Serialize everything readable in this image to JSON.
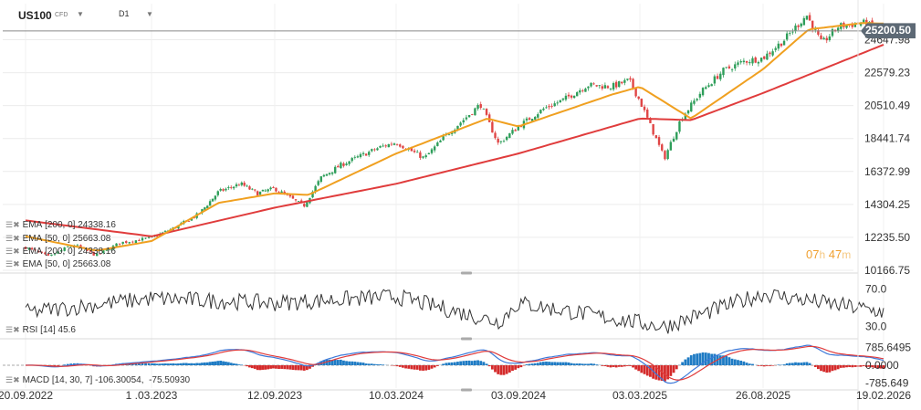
{
  "header": {
    "symbol": "US100",
    "instrument_type": "CFD",
    "timeframe": "D1"
  },
  "legend_overlays": [
    {
      "label": "EMA",
      "params": "[200, 0]",
      "value": "24338.16"
    },
    {
      "label": "EMA",
      "params": "[50, 0]",
      "value": "25663.08"
    },
    {
      "label": "EMA",
      "params": "[200, 0]",
      "value": "24338.16"
    },
    {
      "label": "EMA",
      "params": "[50, 0]",
      "value": "25663.08"
    }
  ],
  "rsi_legend": {
    "label": "RSI",
    "params": "[14]",
    "value": "45.6"
  },
  "macd_legend": {
    "label": "MACD",
    "params": "[14, 30, 7]",
    "value1": "-106.30054",
    "value2": "-75.50930"
  },
  "timer": {
    "hours": "07",
    "h_unit": "h",
    "minutes": "47",
    "m_unit": "m"
  },
  "last_price": "25200.50",
  "colors": {
    "ema200": "#e03c3c",
    "ema50": "#f0a020",
    "bull_candle": "#2e9e5a",
    "bear_candle": "#e04545",
    "rsi_line": "#333333",
    "macd_line": "#3c78d8",
    "signal_line": "#e03c3c",
    "hist_pos": "#1e7bc4",
    "hist_neg": "#d42a2a"
  },
  "chart_data": [
    {
      "type": "candlestick",
      "x_tick_labels": [
        "20.09.2022",
        "1 .03.2023",
        "12.09.2023",
        "10.03.2024",
        "03.09.2024",
        "03.03.2025",
        "26.08.2025",
        "19.02.2026"
      ],
      "y_tick_labels": [
        "24647.98",
        "22579.23",
        "20510.49",
        "18441.74",
        "16372.99",
        "14304.25",
        "12235.50",
        "10166.75"
      ],
      "y_range": [
        10166.75,
        26800
      ],
      "last_price": 25200.5,
      "close_path": [
        [
          "20.09.2022",
          11600
        ],
        [
          "2022-10-20",
          11000
        ],
        [
          "2022-11-20",
          11800
        ],
        [
          "2022-12-20",
          11100
        ],
        [
          "2023-01-20",
          11900
        ],
        [
          "1 .03.2023",
          12200
        ],
        [
          "2023-04-10",
          12900
        ],
        [
          "2023-05-15",
          13700
        ],
        [
          "2023-06-15",
          15100
        ],
        [
          "2023-07-20",
          15600
        ],
        [
          "2023-08-15",
          15000
        ],
        [
          "12.09.2023",
          15300
        ],
        [
          "2023-10-25",
          14200
        ],
        [
          "2023-11-20",
          16000
        ],
        [
          "2023-12-20",
          16800
        ],
        [
          "2024-01-20",
          17400
        ],
        [
          "2024-02-15",
          17900
        ],
        [
          "10.03.2024",
          18200
        ],
        [
          "2024-04-20",
          17200
        ],
        [
          "2024-05-20",
          18600
        ],
        [
          "2024-06-20",
          19800
        ],
        [
          "2024-07-10",
          20600
        ],
        [
          "2024-08-05",
          18100
        ],
        [
          "03.09.2024",
          19200
        ],
        [
          "2024-10-10",
          20300
        ],
        [
          "2024-11-10",
          20900
        ],
        [
          "2024-12-15",
          21800
        ],
        [
          "2025-01-20",
          21700
        ],
        [
          "2025-02-15",
          22100
        ],
        [
          "03.03.2025",
          20800
        ],
        [
          "2025-04-07",
          17200
        ],
        [
          "2025-05-01",
          19700
        ],
        [
          "2025-05-30",
          21400
        ],
        [
          "2025-06-30",
          22700
        ],
        [
          "2025-07-30",
          23300
        ],
        [
          "26.08.2025",
          23500
        ],
        [
          "2025-09-25",
          24600
        ],
        [
          "2025-10-29",
          26200
        ],
        [
          "2025-11-20",
          24400
        ],
        [
          "2025-12-15",
          25500
        ],
        [
          "2026-01-20",
          25700
        ],
        [
          "19.02.2026",
          25200.5
        ]
      ],
      "ema200_path": [
        [
          "20.09.2022",
          13300
        ],
        [
          "1 .03.2023",
          12300
        ],
        [
          "12.09.2023",
          14100
        ],
        [
          "10.03.2024",
          15600
        ],
        [
          "03.09.2024",
          17500
        ],
        [
          "03.03.2025",
          19700
        ],
        [
          "2025-05-15",
          19600
        ],
        [
          "26.08.2025",
          21300
        ],
        [
          "19.02.2026",
          24338.16
        ]
      ],
      "ema50_path": [
        [
          "20.09.2022",
          12300
        ],
        [
          "2022-12-20",
          11400
        ],
        [
          "1 .03.2023",
          12000
        ],
        [
          "2023-06-15",
          14400
        ],
        [
          "12.09.2023",
          15000
        ],
        [
          "2023-11-01",
          14900
        ],
        [
          "10.03.2024",
          17500
        ],
        [
          "2024-07-20",
          19700
        ],
        [
          "03.09.2024",
          19200
        ],
        [
          "2025-01-20",
          21200
        ],
        [
          "03.03.2025",
          21700
        ],
        [
          "2025-05-15",
          19700
        ],
        [
          "26.08.2025",
          22800
        ],
        [
          "2025-11-01",
          25300
        ],
        [
          "2026-01-20",
          25700
        ],
        [
          "19.02.2026",
          25663.08
        ]
      ]
    },
    {
      "type": "line",
      "name": "RSI [14]",
      "y_tick_labels": [
        "70.0",
        "30.0"
      ],
      "y_range": [
        20,
        85
      ],
      "last_value": 45.6,
      "approx_path": [
        [
          "20.09.2022",
          45
        ],
        [
          "1 .03.2023",
          60
        ],
        [
          "12.09.2023",
          55
        ],
        [
          "10.03.2024",
          62
        ],
        [
          "2024-08-05",
          35
        ],
        [
          "03.09.2024",
          55
        ],
        [
          "2025-04-07",
          30
        ],
        [
          "26.08.2025",
          65
        ],
        [
          "19.02.2026",
          45.6
        ]
      ]
    },
    {
      "type": "line",
      "name": "MACD [14, 30, 7]",
      "y_tick_labels": [
        "785.6495",
        "0.0000",
        "-785.649"
      ],
      "y_range": [
        -1000,
        1000
      ],
      "last_values": [
        -106.30054,
        -75.5093
      ]
    }
  ]
}
